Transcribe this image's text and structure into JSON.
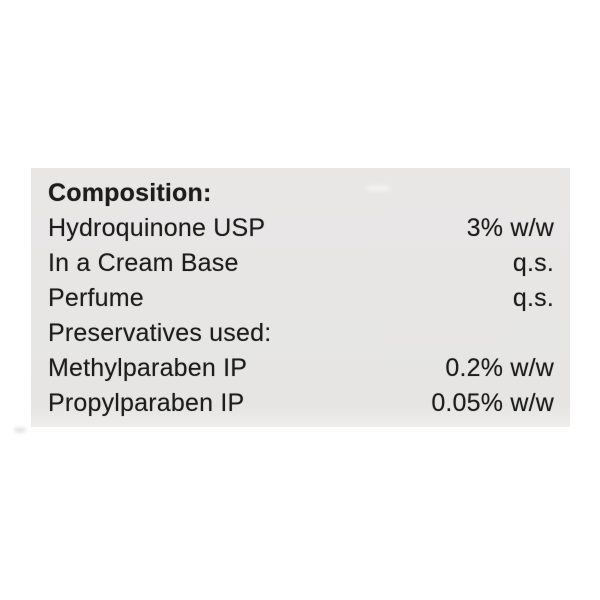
{
  "label": {
    "title": "Composition:",
    "rows": [
      {
        "name": "Hydroquinone USP",
        "value": "3% w/w"
      },
      {
        "name": "In a Cream Base",
        "value": "q.s."
      },
      {
        "name": "Perfume",
        "value": "q.s."
      },
      {
        "name": "Preservatives used:",
        "value": ""
      },
      {
        "name": "Methylparaben IP",
        "value": "0.2% w/w"
      },
      {
        "name": "Propylparaben IP",
        "value": "0.05% w/w"
      }
    ],
    "colors": {
      "page_background": "#ffffff",
      "panel_background": "#e6e5e4",
      "text": "#1d1d1d"
    }
  }
}
